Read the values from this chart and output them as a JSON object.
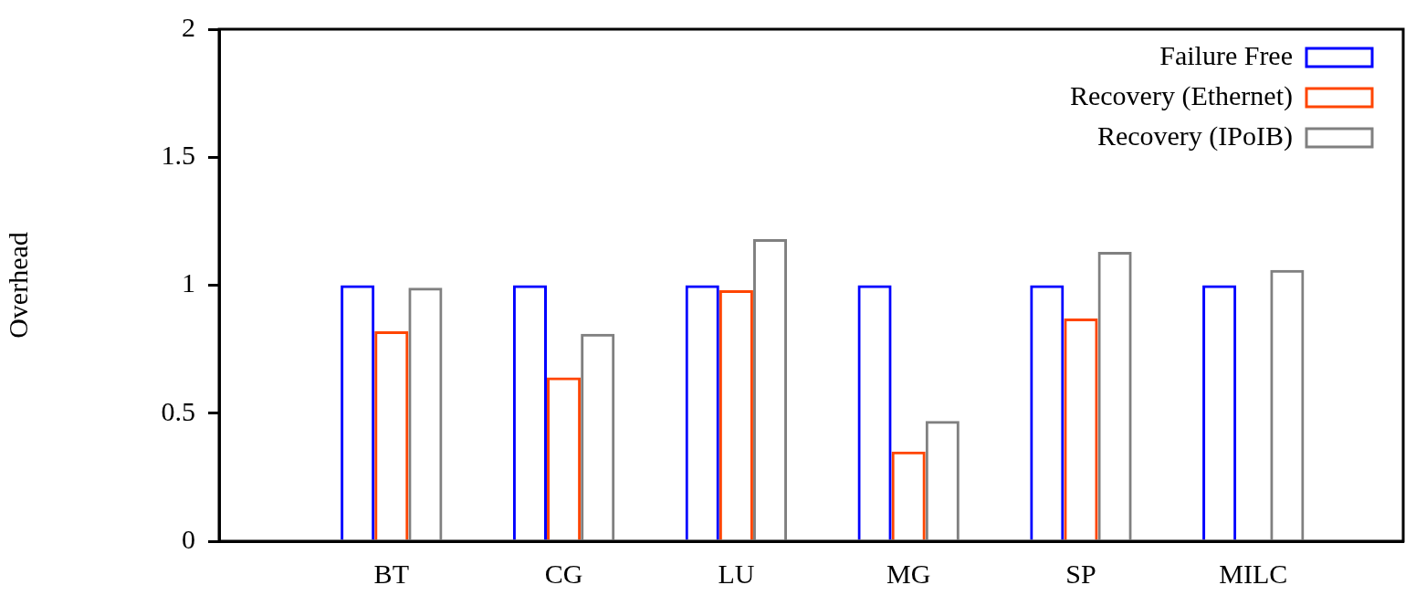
{
  "chart_data": {
    "type": "bar",
    "ylabel": "Overhead",
    "categories": [
      "BT",
      "CG",
      "LU",
      "MG",
      "SP",
      "MILC"
    ],
    "series": [
      {
        "name": "Failure Free",
        "color": "#0000ff",
        "values": [
          1,
          1,
          1,
          1,
          1,
          1
        ]
      },
      {
        "name": "Recovery (Ethernet)",
        "color": "#ff4500",
        "values": [
          0.82,
          0.64,
          0.98,
          0.35,
          0.87,
          0
        ]
      },
      {
        "name": "Recovery (IPoIB)",
        "color": "#808080",
        "values": [
          0.99,
          0.81,
          1.18,
          0.47,
          1.13,
          1.06
        ]
      }
    ],
    "ylim": [
      0,
      2
    ],
    "yticks": [
      0,
      0.5,
      1,
      1.5,
      2
    ],
    "legend": "top right"
  }
}
